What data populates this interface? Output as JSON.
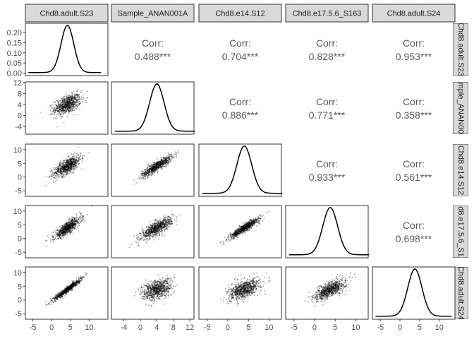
{
  "chart_data": {
    "type": "pairs",
    "variables": [
      "Chd8.adult.S23",
      "Sample_ANAN001A",
      "Chd8.e14.S12",
      "Chd8.e17.5.6_S163",
      "Chd8.adult.S24"
    ],
    "strip_labels": {
      "top": [
        "Chd8.adult.S23",
        "Sample_ANAN001A",
        "Chd8.e14.S12",
        "Chd8.e17.5.6_S163",
        "Chd8.adult.S24"
      ],
      "right": [
        "Chd8.adult.S23",
        "mple_ANAN00",
        "Chd8.e14.S12",
        "d8.e17.5.6_S1",
        "Chd8.adult.S24"
      ]
    },
    "correlation_label": "Corr:",
    "correlations": [
      {
        "row": 0,
        "col": 1,
        "text": "0.488***",
        "value": 0.488
      },
      {
        "row": 0,
        "col": 2,
        "text": "0.704***",
        "value": 0.704
      },
      {
        "row": 0,
        "col": 3,
        "text": "0.828***",
        "value": 0.828
      },
      {
        "row": 0,
        "col": 4,
        "text": "0.953***",
        "value": 0.953
      },
      {
        "row": 1,
        "col": 2,
        "text": "0.886***",
        "value": 0.886
      },
      {
        "row": 1,
        "col": 3,
        "text": "0.771***",
        "value": 0.771
      },
      {
        "row": 1,
        "col": 4,
        "text": "0.358***",
        "value": 0.358
      },
      {
        "row": 2,
        "col": 3,
        "text": "0.933***",
        "value": 0.933
      },
      {
        "row": 2,
        "col": 4,
        "text": "0.561***",
        "value": 0.561
      },
      {
        "row": 3,
        "col": 4,
        "text": "0.698***",
        "value": 0.698
      }
    ],
    "axes": {
      "x": [
        {
          "range": [
            -7,
            15
          ],
          "ticks": [
            -5,
            0,
            5,
            10
          ]
        },
        {
          "range": [
            -7,
            13
          ],
          "ticks": [
            -4,
            0,
            4,
            8,
            12
          ]
        },
        {
          "range": [
            -7,
            13
          ],
          "ticks": [
            -5,
            0,
            5,
            10
          ]
        },
        {
          "range": [
            -7,
            13
          ],
          "ticks": [
            -5,
            0,
            5,
            10
          ]
        },
        {
          "range": [
            -7,
            14
          ],
          "ticks": [
            -5,
            0,
            5,
            10
          ]
        }
      ],
      "y": [
        {
          "range": [
            -0.012,
            0.245
          ],
          "ticks": [
            0.0,
            0.05,
            0.1,
            0.15,
            0.2
          ],
          "tick_labels": [
            "0.00",
            "0.05",
            "0.10",
            "0.15",
            "0.20"
          ]
        },
        {
          "range": [
            -6.8,
            12.2
          ],
          "ticks": [
            -4,
            0,
            4,
            8,
            12
          ],
          "tick_labels": [
            "-4",
            "0",
            "4",
            "8",
            "12"
          ]
        },
        {
          "range": [
            -7,
            12
          ],
          "ticks": [
            -5,
            0,
            5,
            10
          ],
          "tick_labels": [
            "-5",
            "0",
            "5",
            "10"
          ]
        },
        {
          "range": [
            -7,
            12
          ],
          "ticks": [
            -5,
            0,
            5,
            10
          ],
          "tick_labels": [
            "-5",
            "0",
            "5",
            "10"
          ]
        },
        {
          "range": [
            -7,
            12
          ],
          "ticks": [
            -5,
            0,
            5,
            10
          ],
          "tick_labels": [
            "-5",
            "0",
            "5",
            "10"
          ]
        }
      ]
    },
    "densities": [
      {
        "mean": 4.2,
        "sd": 1.7,
        "peak": 0.232
      },
      {
        "mean": 4.0,
        "sd": 1.75,
        "peak": 0.232
      },
      {
        "mean": 4.0,
        "sd": 1.8,
        "peak": 0.232
      },
      {
        "mean": 3.8,
        "sd": 1.8,
        "peak": 0.232
      },
      {
        "mean": 3.8,
        "sd": 1.8,
        "peak": 0.232
      }
    ],
    "grid": false,
    "colors": {
      "strip_fill": "#d9d9d9",
      "strip_border": "#333333",
      "panel_border": "#333333",
      "points": "#000000",
      "density_line": "#000000",
      "corr_text": "#595959"
    }
  }
}
